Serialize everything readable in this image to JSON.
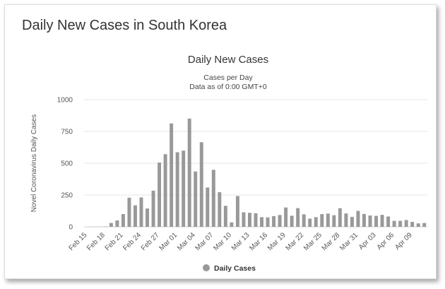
{
  "page_title": "Daily New Cases in South Korea",
  "chart_data": {
    "type": "bar",
    "title": "Daily New Cases",
    "subtitle_lines": [
      "Cases per Day",
      "Data as of 0:00 GMT+0"
    ],
    "xlabel": "",
    "ylabel": "Novel Coronavirus Daily Cases",
    "ylim": [
      0,
      1000
    ],
    "yticks": [
      0,
      250,
      500,
      750,
      1000
    ],
    "grid": true,
    "legend_position": "bottom-center",
    "categories": [
      "Feb 15",
      "Feb 16",
      "Feb 17",
      "Feb 18",
      "Feb 19",
      "Feb 20",
      "Feb 21",
      "Feb 22",
      "Feb 23",
      "Feb 24",
      "Feb 25",
      "Feb 26",
      "Feb 27",
      "Feb 28",
      "Feb 29",
      "Mar 01",
      "Mar 02",
      "Mar 03",
      "Mar 04",
      "Mar 05",
      "Mar 06",
      "Mar 07",
      "Mar 08",
      "Mar 09",
      "Mar 10",
      "Mar 11",
      "Mar 12",
      "Mar 13",
      "Mar 14",
      "Mar 15",
      "Mar 16",
      "Mar 17",
      "Mar 18",
      "Mar 19",
      "Mar 20",
      "Mar 21",
      "Mar 22",
      "Mar 23",
      "Mar 24",
      "Mar 25",
      "Mar 26",
      "Mar 27",
      "Mar 28",
      "Mar 29",
      "Mar 30",
      "Mar 31",
      "Apr 01",
      "Apr 02",
      "Apr 03",
      "Apr 04",
      "Apr 05",
      "Apr 06",
      "Apr 07",
      "Apr 08",
      "Apr 09",
      "Apr 10",
      "Apr 11"
    ],
    "tick_labels": [
      "Feb 15",
      "Feb 18",
      "Feb 21",
      "Feb 24",
      "Feb 27",
      "Mar 01",
      "Mar 04",
      "Mar 07",
      "Mar 10",
      "Mar 13",
      "Mar 16",
      "Mar 19",
      "Mar 22",
      "Mar 25",
      "Mar 28",
      "Mar 31",
      "Apr 03",
      "Apr 06",
      "Apr 09"
    ],
    "series": [
      {
        "name": "Daily Cases",
        "color": "#999999",
        "values": [
          0,
          1,
          1,
          3,
          30,
          50,
          100,
          229,
          169,
          231,
          144,
          284,
          505,
          571,
          813,
          586,
          599,
          851,
          435,
          665,
          309,
          448,
          272,
          165,
          35,
          242,
          114,
          110,
          107,
          76,
          74,
          84,
          93,
          152,
          87,
          147,
          98,
          64,
          76,
          100,
          104,
          91,
          146,
          105,
          78,
          125,
          101,
          89,
          86,
          94,
          81,
          47,
          47,
          53,
          39,
          27,
          30
        ]
      }
    ]
  }
}
